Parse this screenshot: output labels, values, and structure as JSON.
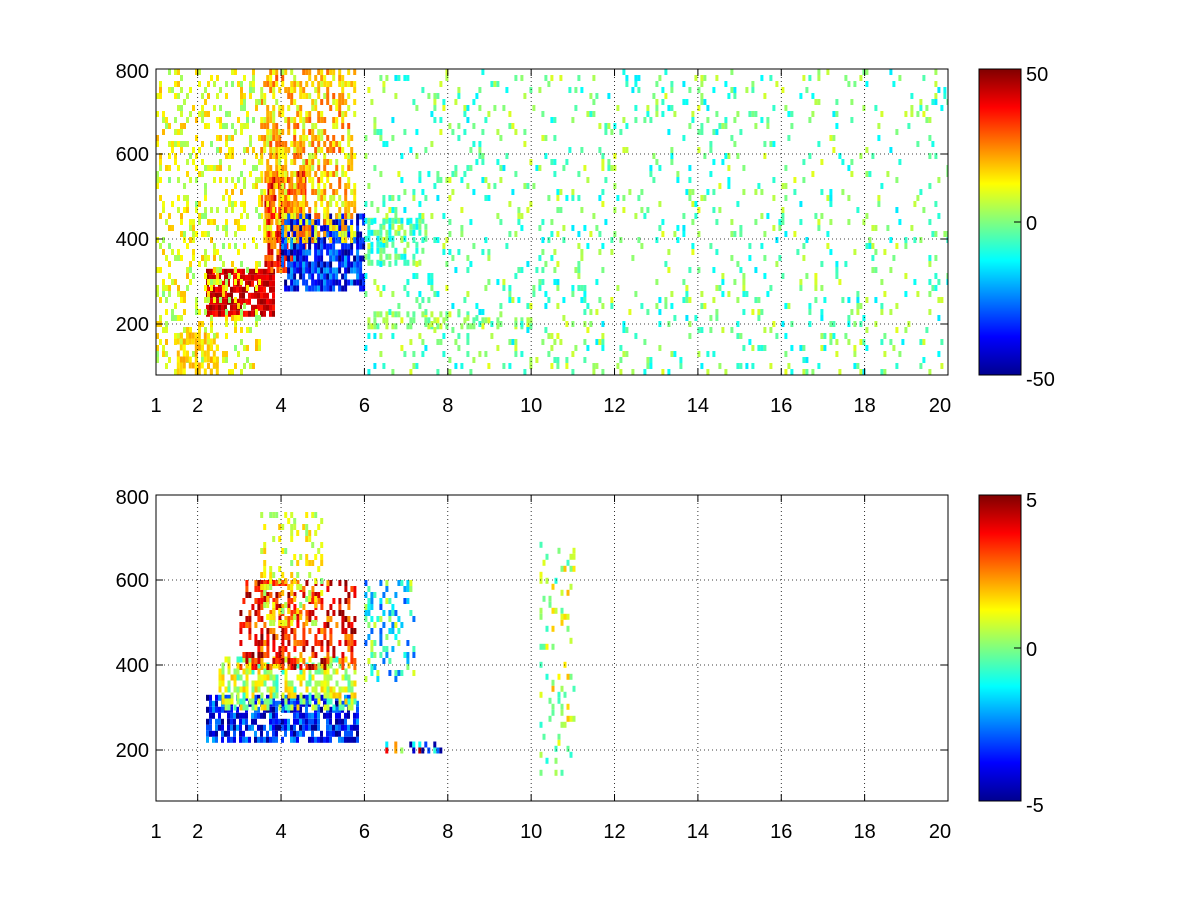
{
  "chart_data": [
    {
      "type": "heatmap",
      "title": "",
      "xlabel": "",
      "ylabel": "",
      "xlim": [
        1,
        20
      ],
      "ylim": [
        80,
        800
      ],
      "x_ticks": [
        1,
        2,
        4,
        6,
        8,
        10,
        12,
        14,
        16,
        18,
        20
      ],
      "x_tick_labels": [
        "1",
        "2",
        "4",
        "6",
        "8",
        "10",
        "12",
        "14",
        "16",
        "18",
        "20"
      ],
      "y_ticks": [
        200,
        400,
        600,
        800
      ],
      "y_tick_labels": [
        "200",
        "400",
        "600",
        "800"
      ],
      "grid": true,
      "colormap": "jet",
      "clim": [
        -50,
        50
      ],
      "colorbar_ticks": [
        -50,
        0,
        50
      ],
      "colorbar_tick_labels": [
        "-50",
        "0",
        "50"
      ],
      "clusters": [
        {
          "x": [
            2.2,
            3.8
          ],
          "y": [
            220,
            330
          ],
          "value_range": [
            35,
            48
          ],
          "density": 0.85
        },
        {
          "x": [
            3.6,
            4.6
          ],
          "y": [
            330,
            560
          ],
          "value_range": [
            20,
            45
          ],
          "density": 0.75
        },
        {
          "x": [
            4.0,
            6.0
          ],
          "y": [
            290,
            460
          ],
          "value_range": [
            -50,
            -20
          ],
          "density": 0.75
        },
        {
          "x": [
            3.5,
            5.8
          ],
          "y": [
            400,
            800
          ],
          "value_range": [
            5,
            30
          ],
          "density": 0.5
        },
        {
          "x": [
            1.0,
            3.5
          ],
          "y": [
            80,
            800
          ],
          "value_range": [
            0,
            20
          ],
          "density": 0.3
        },
        {
          "x": [
            1.5,
            2.5
          ],
          "y": [
            90,
            180
          ],
          "value_range": [
            12,
            22
          ],
          "density": 0.6
        },
        {
          "x": [
            6.0,
            7.5
          ],
          "y": [
            350,
            450
          ],
          "value_range": [
            -15,
            5
          ],
          "density": 0.5
        },
        {
          "x": [
            6.0,
            10.0
          ],
          "y": [
            190,
            230
          ],
          "value_range": [
            -5,
            10
          ],
          "density": 0.4
        },
        {
          "x": [
            6.0,
            20.0
          ],
          "y": [
            80,
            800
          ],
          "value_range": [
            -15,
            10
          ],
          "density": 0.12
        }
      ]
    },
    {
      "type": "heatmap",
      "title": "",
      "xlabel": "",
      "ylabel": "",
      "xlim": [
        1,
        20
      ],
      "ylim": [
        80,
        800
      ],
      "x_ticks": [
        1,
        2,
        4,
        6,
        8,
        10,
        12,
        14,
        16,
        18,
        20
      ],
      "x_tick_labels": [
        "1",
        "2",
        "4",
        "6",
        "8",
        "10",
        "12",
        "14",
        "16",
        "18",
        "20"
      ],
      "y_ticks": [
        200,
        400,
        600,
        800
      ],
      "y_tick_labels": [
        "200",
        "400",
        "600",
        "800"
      ],
      "grid": true,
      "colormap": "jet",
      "clim": [
        -5,
        5
      ],
      "colorbar_ticks": [
        -5,
        0,
        5
      ],
      "colorbar_tick_labels": [
        "-5",
        "0",
        "5"
      ],
      "clusters": [
        {
          "x": [
            2.2,
            5.8
          ],
          "y": [
            230,
            330
          ],
          "value_range": [
            -5,
            -2
          ],
          "density": 0.7
        },
        {
          "x": [
            2.5,
            5.8
          ],
          "y": [
            300,
            420
          ],
          "value_range": [
            -1,
            2
          ],
          "density": 0.6
        },
        {
          "x": [
            3.0,
            5.8
          ],
          "y": [
            400,
            600
          ],
          "value_range": [
            2,
            5
          ],
          "density": 0.45
        },
        {
          "x": [
            3.5,
            5.0
          ],
          "y": [
            500,
            760
          ],
          "value_range": [
            0,
            2
          ],
          "density": 0.3
        },
        {
          "x": [
            6.0,
            7.2
          ],
          "y": [
            360,
            600
          ],
          "value_range": [
            -3,
            1
          ],
          "density": 0.35
        },
        {
          "x": [
            6.5,
            7.8
          ],
          "y": [
            205,
            220
          ],
          "value_range": [
            -5,
            5
          ],
          "density": 0.5
        },
        {
          "x": [
            10.2,
            11.0
          ],
          "y": [
            140,
            690
          ],
          "value_range": [
            -1,
            2
          ],
          "density": 0.15
        }
      ]
    }
  ]
}
